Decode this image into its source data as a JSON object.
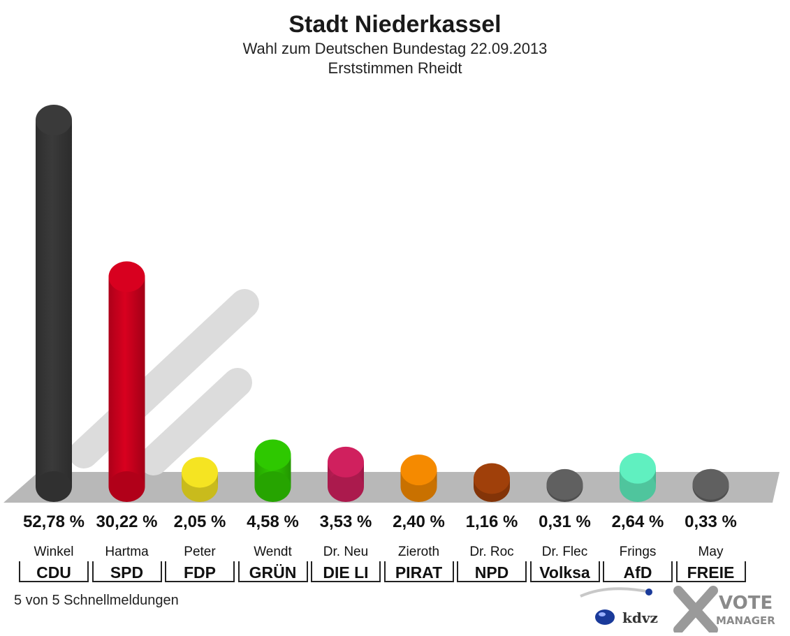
{
  "chart_data": {
    "type": "bar",
    "title": "Stadt Niederkassel",
    "subtitle": "Wahl zum Deutschen Bundestag 22.09.2013",
    "subtitle2": "Erststimmen Rheidt",
    "categories": [
      "CDU",
      "SPD",
      "FDP",
      "GRÜNE",
      "DIE LINKE",
      "PIRATEN",
      "NPD",
      "Volksabstimmung",
      "AfD",
      "FREIE WÄHLER"
    ],
    "category_labels_shown": [
      "CDU",
      "SPD",
      "FDP",
      "GRÜN",
      "DIE LI",
      "PIRAT",
      "NPD",
      "Volksa",
      "AfD",
      "FREIE"
    ],
    "candidates": [
      "Winkel",
      "Hartma",
      "Peter",
      "Wendt",
      "Dr. Neu",
      "Zieroth",
      "Dr. Roc",
      "Dr. Flec",
      "Frings",
      "May"
    ],
    "values": [
      52.78,
      30.22,
      2.05,
      4.58,
      3.53,
      2.4,
      1.16,
      0.31,
      2.64,
      0.33
    ],
    "value_labels": [
      "52,78 %",
      "30,22 %",
      "2,05 %",
      "4,58 %",
      "3,53 %",
      "2,40 %",
      "1,16 %",
      "0,31 %",
      "2,64 %",
      "0,33 %"
    ],
    "colors": [
      "#3a3a3a",
      "#d8001f",
      "#f5e422",
      "#2ec800",
      "#d0205e",
      "#f58a00",
      "#a0400a",
      "#606060",
      "#60f0c0",
      "#606060"
    ],
    "ylim": [
      0,
      55
    ],
    "grid": false,
    "legend": "none"
  },
  "footer": {
    "status": "5 von 5 Schnellmeldungen"
  },
  "logos": {
    "kdvz": "kdvz",
    "vote1": "VOTE",
    "vote2": "MANAGER"
  }
}
